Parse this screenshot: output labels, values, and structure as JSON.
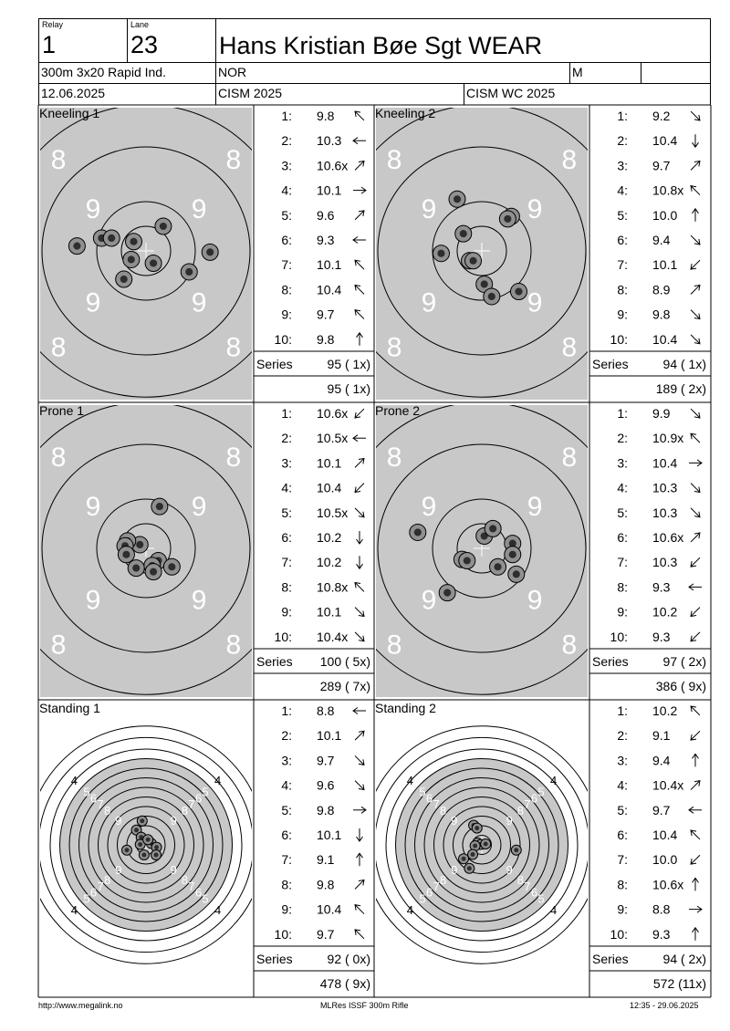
{
  "header": {
    "relay_label": "Relay",
    "relay": "1",
    "lane_label": "Lane",
    "lane": "23",
    "name": "Hans Kristian Bøe Sgt WEAR",
    "event": "300m 3x20 Rapid Ind.",
    "nation": "NOR",
    "gender": "M",
    "date": "12.06.2025",
    "competition": "CISM 2025",
    "competition2": "CISM WC 2025"
  },
  "series": [
    {
      "title": "Kneeling 1",
      "target": "prone",
      "shots": [
        {
          "n": "1:",
          "v": "9.8",
          "dir": "NW"
        },
        {
          "n": "2:",
          "v": "10.3",
          "dir": "W"
        },
        {
          "n": "3:",
          "v": "10.6x",
          "dir": "NE"
        },
        {
          "n": "4:",
          "v": "10.1",
          "dir": "E"
        },
        {
          "n": "5:",
          "v": "9.6",
          "dir": "NE"
        },
        {
          "n": "6:",
          "v": "9.3",
          "dir": "W"
        },
        {
          "n": "7:",
          "v": "10.1",
          "dir": "NW"
        },
        {
          "n": "8:",
          "v": "10.4",
          "dir": "NW"
        },
        {
          "n": "9:",
          "v": "9.7",
          "dir": "NW"
        },
        {
          "n": "10:",
          "v": "9.8",
          "dir": "N"
        }
      ],
      "series_label": "Series",
      "series_total": "95 ( 1x)",
      "cumulative": "95 ( 1x)",
      "holes": [
        [
          -2.8,
          -0.2
        ],
        [
          -1.8,
          -0.52
        ],
        [
          -1.4,
          -0.52
        ],
        [
          0.7,
          -1.0
        ],
        [
          -0.5,
          -0.38
        ],
        [
          -0.6,
          0.35
        ],
        [
          0.3,
          0.5
        ],
        [
          1.75,
          0.85
        ],
        [
          -0.9,
          1.15
        ],
        [
          2.6,
          0.05
        ]
      ]
    },
    {
      "title": "Kneeling 2",
      "target": "prone",
      "shots": [
        {
          "n": "1:",
          "v": "9.2",
          "dir": "SE"
        },
        {
          "n": "2:",
          "v": "10.4",
          "dir": "S"
        },
        {
          "n": "3:",
          "v": "9.7",
          "dir": "NE"
        },
        {
          "n": "4:",
          "v": "10.8x",
          "dir": "NW"
        },
        {
          "n": "5:",
          "v": "10.0",
          "dir": "N"
        },
        {
          "n": "6:",
          "v": "9.4",
          "dir": "SE"
        },
        {
          "n": "7:",
          "v": "10.1",
          "dir": "SW"
        },
        {
          "n": "8:",
          "v": "8.9",
          "dir": "NE"
        },
        {
          "n": "9:",
          "v": "9.8",
          "dir": "SE"
        },
        {
          "n": "10:",
          "v": "10.4",
          "dir": "SE"
        }
      ],
      "series_label": "Series",
      "series_total": "94 ( 1x)",
      "cumulative": "189 ( 2x)",
      "holes": [
        [
          -1.0,
          -2.1
        ],
        [
          -0.75,
          -0.7
        ],
        [
          1.2,
          -1.4
        ],
        [
          -0.5,
          0.4
        ],
        [
          -0.35,
          0.4
        ],
        [
          -1.65,
          0.1
        ],
        [
          0.1,
          1.35
        ],
        [
          0.4,
          1.85
        ],
        [
          1.5,
          1.65
        ],
        [
          1.05,
          -1.3
        ]
      ]
    },
    {
      "title": "Prone 1",
      "target": "prone",
      "shots": [
        {
          "n": "1:",
          "v": "10.6x",
          "dir": "SW"
        },
        {
          "n": "2:",
          "v": "10.5x",
          "dir": "W"
        },
        {
          "n": "3:",
          "v": "10.1",
          "dir": "NE"
        },
        {
          "n": "4:",
          "v": "10.4",
          "dir": "SW"
        },
        {
          "n": "5:",
          "v": "10.5x",
          "dir": "SE"
        },
        {
          "n": "6:",
          "v": "10.2",
          "dir": "S"
        },
        {
          "n": "7:",
          "v": "10.2",
          "dir": "S"
        },
        {
          "n": "8:",
          "v": "10.8x",
          "dir": "NW"
        },
        {
          "n": "9:",
          "v": "10.1",
          "dir": "SE"
        },
        {
          "n": "10:",
          "v": "10.4x",
          "dir": "SE"
        }
      ],
      "series_label": "Series",
      "series_total": "100 ( 5x)",
      "cumulative": "289 ( 7x)",
      "holes": [
        [
          0.5,
          0.5
        ],
        [
          0.25,
          0.7
        ],
        [
          -0.25,
          -0.15
        ],
        [
          -0.75,
          -0.3
        ],
        [
          -0.85,
          -0.1
        ],
        [
          -0.8,
          0.25
        ],
        [
          -0.4,
          0.8
        ],
        [
          0.3,
          0.95
        ],
        [
          1.05,
          0.75
        ],
        [
          0.55,
          -1.7
        ]
      ]
    },
    {
      "title": "Prone 2",
      "target": "prone",
      "shots": [
        {
          "n": "1:",
          "v": "9.9",
          "dir": "SE"
        },
        {
          "n": "2:",
          "v": "10.9x",
          "dir": "NW"
        },
        {
          "n": "3:",
          "v": "10.4",
          "dir": "E"
        },
        {
          "n": "4:",
          "v": "10.3",
          "dir": "SE"
        },
        {
          "n": "5:",
          "v": "10.3",
          "dir": "SE"
        },
        {
          "n": "6:",
          "v": "10.6x",
          "dir": "NE"
        },
        {
          "n": "7:",
          "v": "10.3",
          "dir": "SW"
        },
        {
          "n": "8:",
          "v": "9.3",
          "dir": "W"
        },
        {
          "n": "9:",
          "v": "10.2",
          "dir": "SW"
        },
        {
          "n": "10:",
          "v": "9.3",
          "dir": "SW"
        }
      ],
      "series_label": "Series",
      "series_total": "97 ( 2x)",
      "cumulative": "386 ( 9x)",
      "holes": [
        [
          0.1,
          -0.5
        ],
        [
          0.45,
          -0.8
        ],
        [
          1.25,
          -0.2
        ],
        [
          1.25,
          0.25
        ],
        [
          0.65,
          0.75
        ],
        [
          -0.8,
          0.45
        ],
        [
          -0.6,
          0.5
        ],
        [
          1.4,
          1.05
        ],
        [
          -1.4,
          1.8
        ],
        [
          -2.6,
          -0.65
        ]
      ]
    },
    {
      "title": "Standing 1",
      "target": "standing",
      "shots": [
        {
          "n": "1:",
          "v": "8.8",
          "dir": "W"
        },
        {
          "n": "2:",
          "v": "10.1",
          "dir": "NE"
        },
        {
          "n": "3:",
          "v": "9.7",
          "dir": "SE"
        },
        {
          "n": "4:",
          "v": "9.6",
          "dir": "SE"
        },
        {
          "n": "5:",
          "v": "9.8",
          "dir": "E"
        },
        {
          "n": "6:",
          "v": "10.1",
          "dir": "S"
        },
        {
          "n": "7:",
          "v": "9.1",
          "dir": "N"
        },
        {
          "n": "8:",
          "v": "9.8",
          "dir": "NE"
        },
        {
          "n": "9:",
          "v": "10.4",
          "dir": "NW"
        },
        {
          "n": "10:",
          "v": "9.7",
          "dir": "NW"
        }
      ],
      "series_label": "Series",
      "series_total": "92 ( 0x)",
      "cumulative": "478 ( 9x)",
      "holes": [
        [
          -1.0,
          -1.55
        ],
        [
          -0.5,
          -0.8
        ],
        [
          -0.6,
          -0.05
        ],
        [
          0.55,
          -0.15
        ],
        [
          1.1,
          0.25
        ],
        [
          -0.2,
          1.05
        ],
        [
          1.05,
          1.05
        ],
        [
          -2.0,
          0.55
        ],
        [
          0.2,
          -0.55
        ],
        [
          -0.4,
          -2.5
        ]
      ]
    },
    {
      "title": "Standing 2",
      "target": "standing",
      "shots": [
        {
          "n": "1:",
          "v": "10.2",
          "dir": "NW"
        },
        {
          "n": "2:",
          "v": "9.1",
          "dir": "SW"
        },
        {
          "n": "3:",
          "v": "9.4",
          "dir": "N"
        },
        {
          "n": "4:",
          "v": "10.4x",
          "dir": "NE"
        },
        {
          "n": "5:",
          "v": "9.7",
          "dir": "W"
        },
        {
          "n": "6:",
          "v": "10.4",
          "dir": "NW"
        },
        {
          "n": "7:",
          "v": "10.0",
          "dir": "SW"
        },
        {
          "n": "8:",
          "v": "10.6x",
          "dir": "N"
        },
        {
          "n": "9:",
          "v": "8.8",
          "dir": "E"
        },
        {
          "n": "10:",
          "v": "9.3",
          "dir": "N"
        }
      ],
      "series_label": "Series",
      "series_total": "94 ( 2x)",
      "cumulative": "572 (11x)",
      "holes": [
        [
          -0.85,
          -2.05
        ],
        [
          -0.5,
          -1.75
        ],
        [
          -0.45,
          -0.2
        ],
        [
          -0.1,
          -0.05
        ],
        [
          0.4,
          -0.1
        ],
        [
          -0.7,
          0.1
        ],
        [
          -0.95,
          1.0
        ],
        [
          -1.9,
          1.45
        ],
        [
          -1.3,
          2.45
        ],
        [
          3.6,
          0.55
        ]
      ]
    }
  ],
  "footer": {
    "left": "http://www.megalink.no",
    "center": "MLRes ISSF 300m Rifle",
    "right": "12:35 - 29.06.2025"
  },
  "colors": {
    "target_grey": "#c8c8c8",
    "hole_dark": "#2e2e2e",
    "hole_ring": "#909090"
  }
}
